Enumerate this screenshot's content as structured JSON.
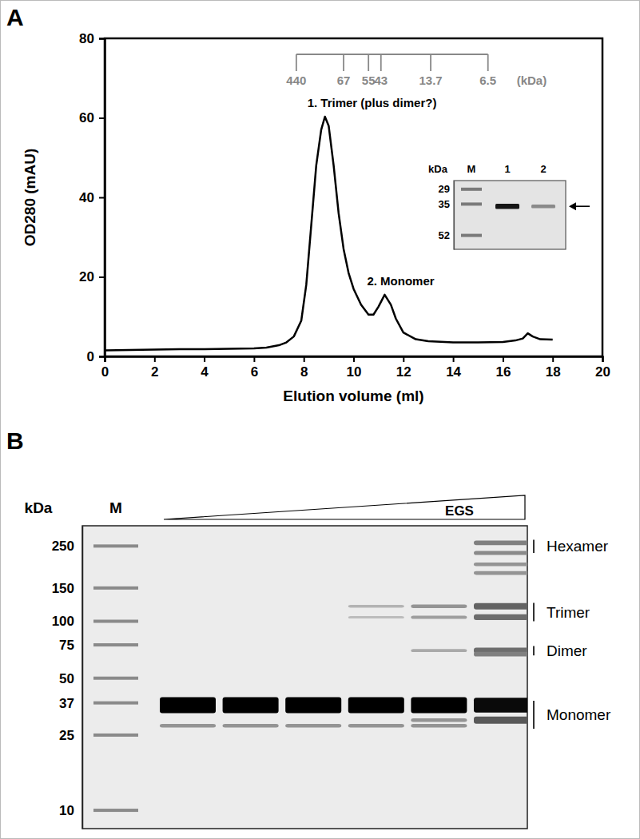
{
  "chart_data": [
    {
      "title": "A",
      "type": "line",
      "x_label": "Elution volume (ml)",
      "y_label": "OD280 (mAU)",
      "xlim": [
        0,
        20
      ],
      "xticks": [
        0,
        2,
        4,
        6,
        8,
        10,
        12,
        14,
        16,
        18,
        20
      ],
      "ylim": [
        0,
        80
      ],
      "yticks": [
        0,
        20,
        40,
        60,
        80
      ],
      "color": "#000000",
      "x": [
        0,
        1,
        2,
        3,
        4,
        5,
        6,
        6.5,
        7,
        7.3,
        7.6,
        7.9,
        8.1,
        8.3,
        8.5,
        8.7,
        8.85,
        9.0,
        9.2,
        9.4,
        9.6,
        9.8,
        10.0,
        10.3,
        10.6,
        10.8,
        11.0,
        11.25,
        11.5,
        11.7,
        12.0,
        12.5,
        13,
        14,
        15,
        16,
        16.5,
        16.8,
        17.0,
        17.2,
        17.5,
        18
      ],
      "values": [
        1.5,
        1.6,
        1.7,
        1.8,
        1.8,
        1.9,
        2.0,
        2.2,
        2.8,
        3.5,
        5,
        9,
        18,
        33,
        48,
        57,
        60.3,
        58,
        48,
        36,
        27,
        21,
        17,
        13,
        10.5,
        10.5,
        12.5,
        15.5,
        13,
        9.5,
        6,
        4.3,
        3.8,
        3.5,
        3.5,
        3.6,
        4,
        4.5,
        5.8,
        5,
        4.3,
        4.2
      ],
      "peaks": [
        {
          "label": "1. Trimer (plus dimer?)",
          "x": 8.85,
          "y": 60.3
        },
        {
          "label": "2. Monomer",
          "x": 11.25,
          "y": 15.5
        }
      ],
      "calibration": {
        "unit": "(kDa)",
        "color": "#888888",
        "kda": [
          440,
          67,
          55,
          43,
          13.7,
          6.5
        ],
        "x": [
          7.7,
          9.6,
          10.6,
          11.1,
          13.1,
          15.4
        ]
      },
      "inset": {
        "type": "gel",
        "log": "y",
        "unit": "kDa",
        "lanes": [
          "M",
          "1",
          "2"
        ],
        "ylim": [
          26,
          62
        ],
        "yticks": [
          52,
          35,
          29
        ],
        "bands": [
          {
            "lane": 1,
            "kda": 36,
            "intensity": 0.9
          },
          {
            "lane": 2,
            "kda": 36,
            "intensity": 0.35
          }
        ],
        "arrow_kda": 36
      }
    },
    {
      "title": "B",
      "type": "gel",
      "log": "y",
      "unit": "kDa",
      "ladder_lane": "M",
      "treatment": "EGS",
      "ylim": [
        8,
        320
      ],
      "yticks": [
        250,
        150,
        100,
        75,
        50,
        37,
        25,
        10
      ],
      "lanes": [
        {
          "bands": [
            {
              "kda": 36,
              "intensity": 1.0
            },
            {
              "kda": 28,
              "intensity": 0.3
            }
          ]
        },
        {
          "bands": [
            {
              "kda": 36,
              "intensity": 1.0
            },
            {
              "kda": 28,
              "intensity": 0.3
            }
          ]
        },
        {
          "bands": [
            {
              "kda": 36,
              "intensity": 1.0
            },
            {
              "kda": 28,
              "intensity": 0.3
            }
          ]
        },
        {
          "bands": [
            {
              "kda": 36,
              "intensity": 1.0
            },
            {
              "kda": 28,
              "intensity": 0.3
            },
            {
              "kda": 120,
              "intensity": 0.15
            },
            {
              "kda": 105,
              "intensity": 0.1
            }
          ]
        },
        {
          "bands": [
            {
              "kda": 36,
              "intensity": 1.0
            },
            {
              "kda": 30,
              "intensity": 0.3
            },
            {
              "kda": 28,
              "intensity": 0.3
            },
            {
              "kda": 120,
              "intensity": 0.3
            },
            {
              "kda": 105,
              "intensity": 0.25
            },
            {
              "kda": 70,
              "intensity": 0.2
            }
          ]
        },
        {
          "bands": [
            {
              "kda": 36,
              "intensity": 0.95
            },
            {
              "kda": 30,
              "intensity": 0.6
            },
            {
              "kda": 120,
              "intensity": 0.55
            },
            {
              "kda": 105,
              "intensity": 0.5
            },
            {
              "kda": 70,
              "intensity": 0.5
            },
            {
              "kda": 67,
              "intensity": 0.4
            },
            {
              "kda": 260,
              "intensity": 0.4
            },
            {
              "kda": 230,
              "intensity": 0.35
            },
            {
              "kda": 200,
              "intensity": 0.3
            },
            {
              "kda": 180,
              "intensity": 0.3
            }
          ]
        }
      ],
      "species": [
        {
          "label": "Hexamer",
          "kda": [
            230,
            270
          ]
        },
        {
          "label": "Trimer",
          "kda": [
            100,
            125
          ]
        },
        {
          "label": "Dimer",
          "kda": [
            66,
            74
          ]
        },
        {
          "label": "Monomer",
          "kda": [
            27,
            38
          ]
        }
      ]
    }
  ]
}
